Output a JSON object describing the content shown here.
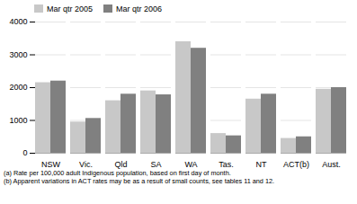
{
  "chart_data": {
    "type": "bar",
    "categories": [
      "NSW",
      "Vic.",
      "Qld",
      "SA",
      "WA",
      "Tas.",
      "NT",
      "ACT(b)",
      "Aust."
    ],
    "series": [
      {
        "name": "Mar qtr 2005",
        "color": "#c8c8c8",
        "values": [
          2150,
          950,
          1600,
          1900,
          3400,
          600,
          1650,
          450,
          1950
        ]
      },
      {
        "name": "Mar qtr 2006",
        "color": "#808080",
        "values": [
          2200,
          1060,
          1800,
          1780,
          3200,
          530,
          1800,
          500,
          2000
        ]
      }
    ],
    "ylim": [
      0,
      4000
    ],
    "yticks": [
      0,
      1000,
      2000,
      3000,
      4000
    ],
    "grid": true,
    "legend": "upper left",
    "annotations": [
      "(a) Rate per 100,000 adult Indigenous population, based on first day of month.",
      "(b) Apparent variations in ACT rates may be as a result of small counts, see tables 11 and 12."
    ]
  }
}
